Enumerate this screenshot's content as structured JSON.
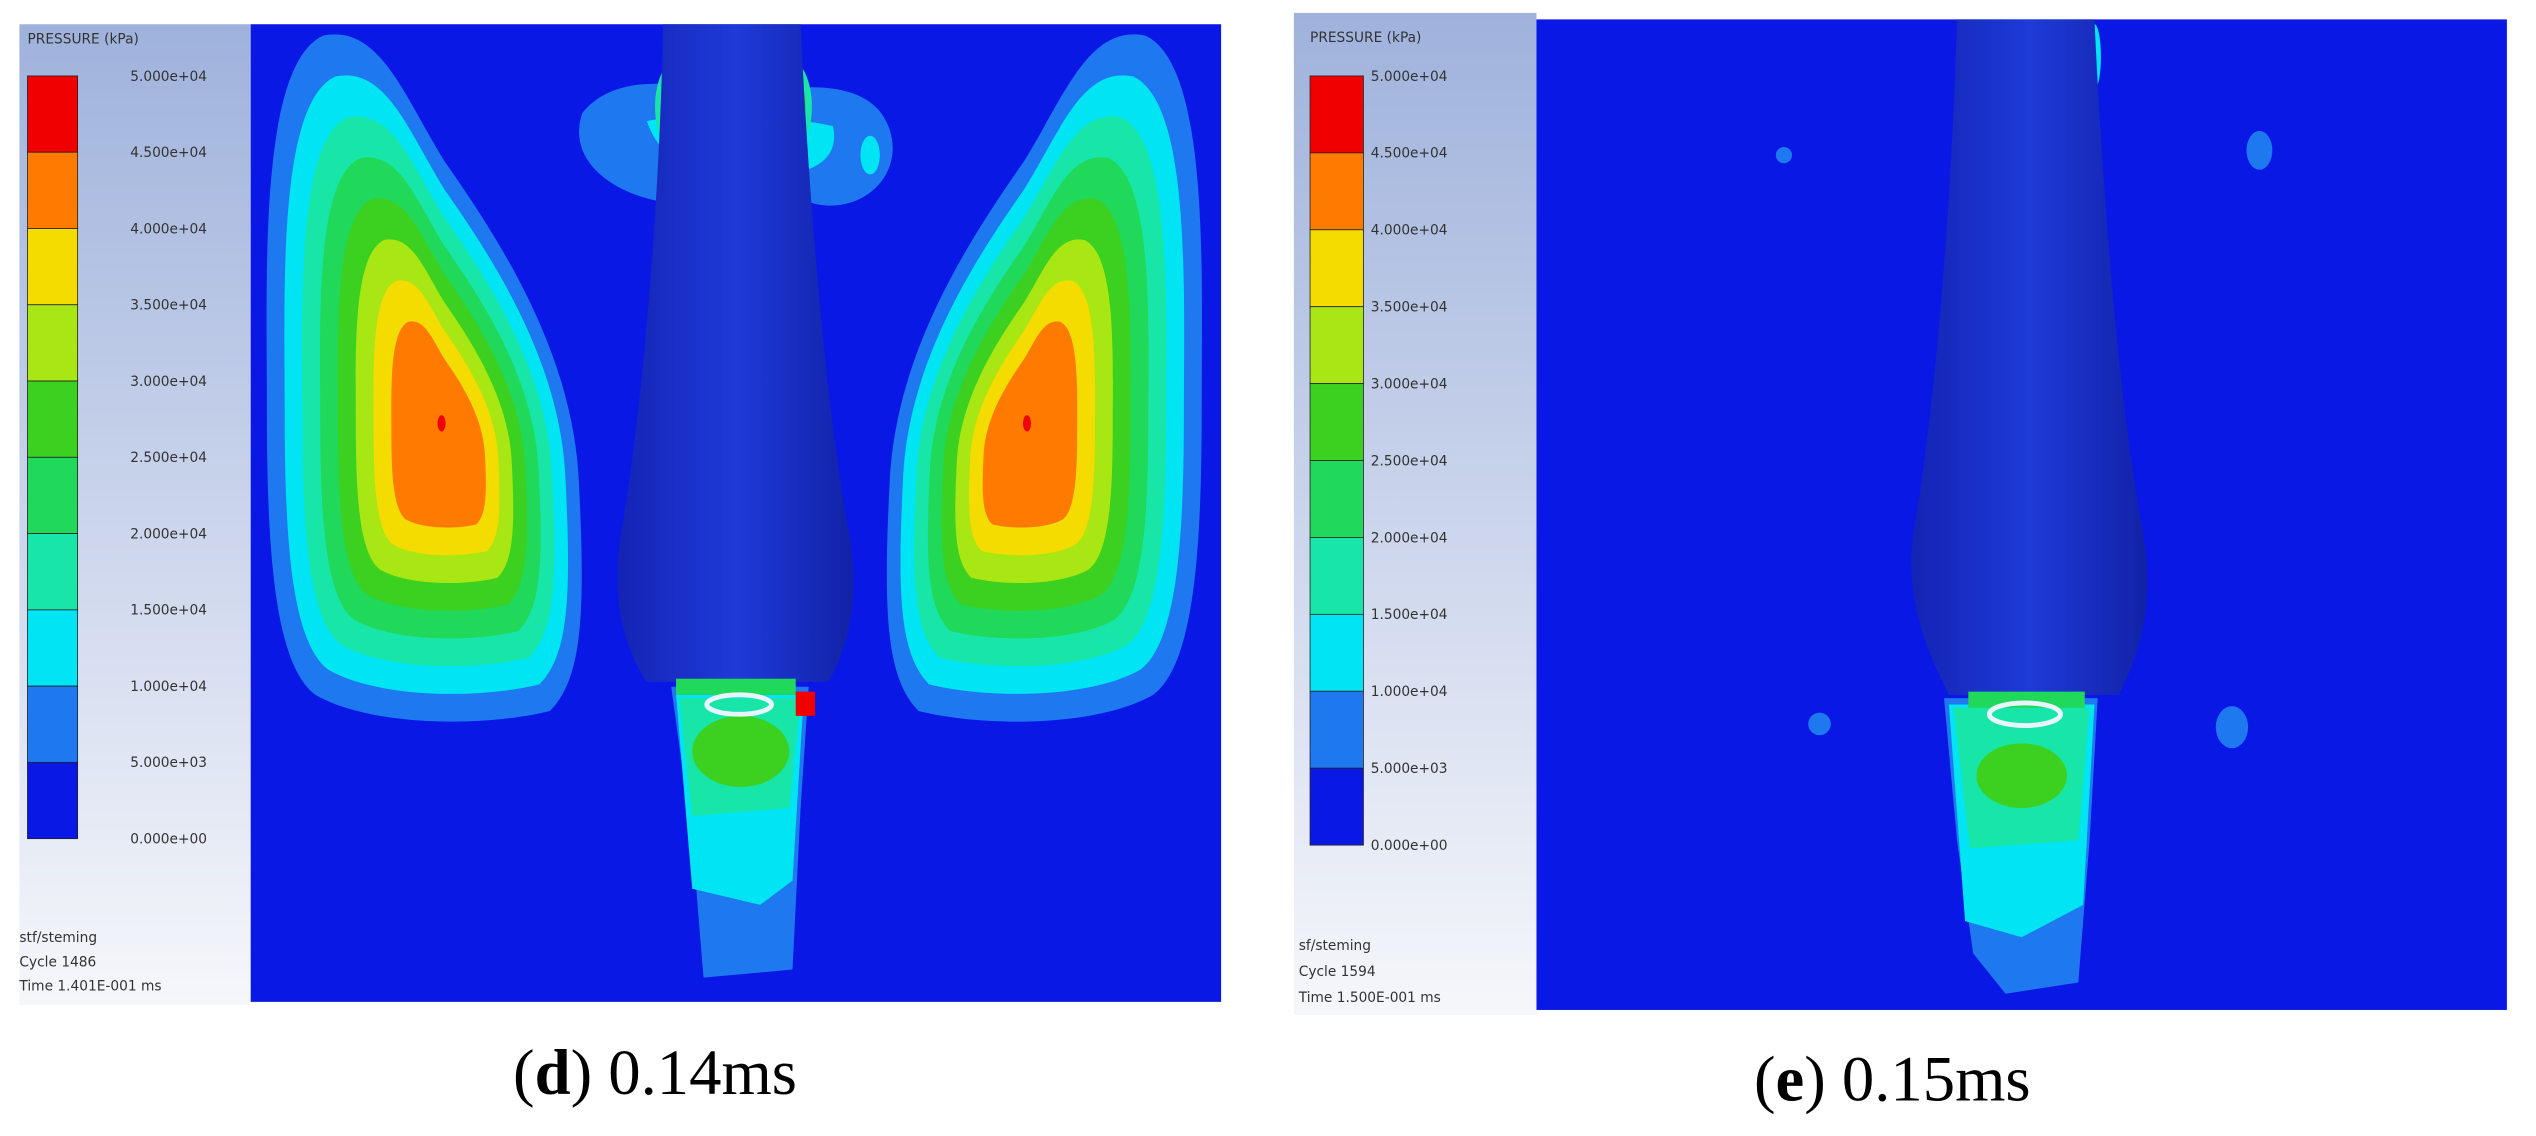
{
  "panels": [
    {
      "legend": {
        "title": "PRESSURE (kPa)",
        "labels": [
          "5.000e+04",
          "4.500e+04",
          "4.000e+04",
          "3.500e+04",
          "3.000e+04",
          "2.500e+04",
          "2.000e+04",
          "1.500e+04",
          "1.000e+04",
          "5.000e+03",
          "0.000e+00"
        ],
        "colors": [
          "#f00000",
          "#ff7a00",
          "#f4dc00",
          "#a8e614",
          "#3cd020",
          "#20d85a",
          "#18e6a8",
          "#00e4f4",
          "#1e78f0",
          "#0a18e6"
        ]
      },
      "info": [
        "stf/steming",
        "Cycle 1486",
        "Time 1.401E-001 ms"
      ],
      "caption": [
        "(",
        "d",
        ") 0.14ms"
      ]
    },
    {
      "legend": {
        "title": "PRESSURE (kPa)",
        "labels": [
          "5.000e+04",
          "4.500e+04",
          "4.000e+04",
          "3.500e+04",
          "3.000e+04",
          "2.500e+04",
          "2.000e+04",
          "1.500e+04",
          "1.000e+04",
          "5.000e+03",
          "0.000e+00"
        ],
        "colors": [
          "#f00000",
          "#ff7a00",
          "#f4dc00",
          "#a8e614",
          "#3cd020",
          "#20d85a",
          "#18e6a8",
          "#00e4f4",
          "#1e78f0",
          "#0a18e6"
        ]
      },
      "info": [
        "sf/steming",
        "Cycle 1594",
        "Time 1.500E-001 ms"
      ],
      "caption": [
        "(",
        "e",
        ") 0.15ms"
      ]
    }
  ]
}
